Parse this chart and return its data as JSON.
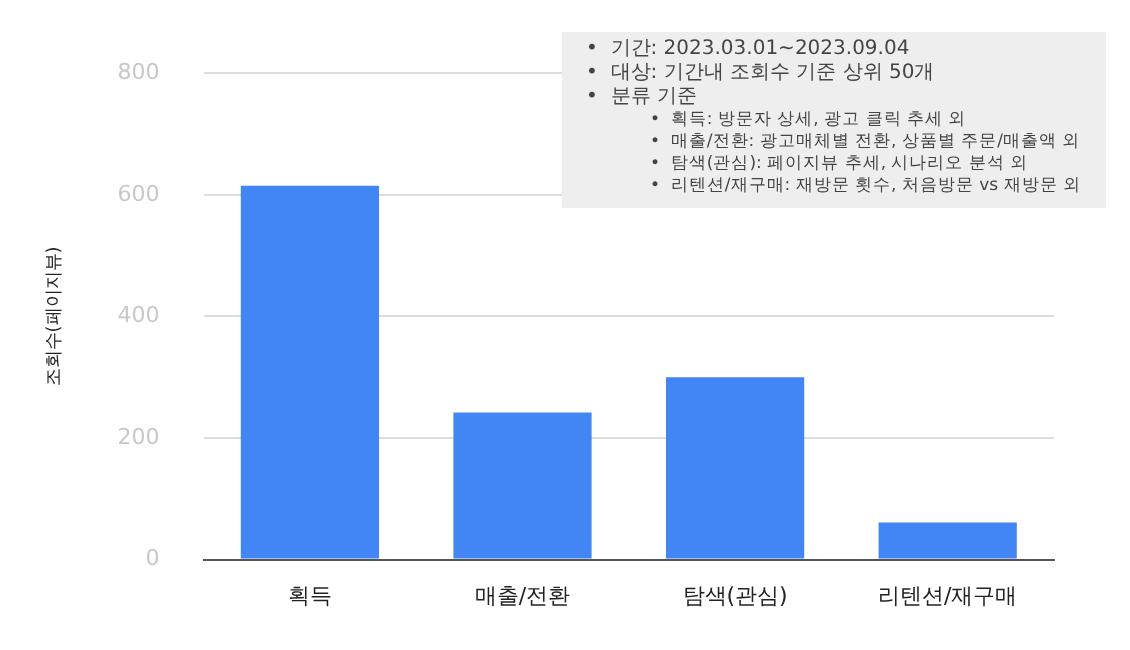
{
  "chart_data": {
    "type": "bar",
    "categories": [
      "획득",
      "매출/전환",
      "탐색(관심)",
      "리텐션/재구매"
    ],
    "values": [
      615,
      242,
      300,
      61
    ],
    "color": "#4285f4",
    "ylabel": "조회수(페이지뷰)",
    "ylim": [
      0,
      800
    ],
    "yticks": [
      0,
      200,
      400,
      600,
      800
    ],
    "grid": "y",
    "annotations": [
      "•  기간: 2023.03.01~2023.09.04",
      "•  대상: 기간내 조회수 기준 상위 50개",
      "•  분류 기준",
      "•  획득: 방문자 상세, 광고 클릭 추세 외",
      "•  매출/전환: 광고매체별 전환, 상품별 주문/매출액 외",
      "•  탐색(관심): 페이지뷰 추세, 시나리오 분석 외",
      "•  리텐션/재구매: 재방문 횟수, 처음방문 vs 재방문 외"
    ]
  }
}
